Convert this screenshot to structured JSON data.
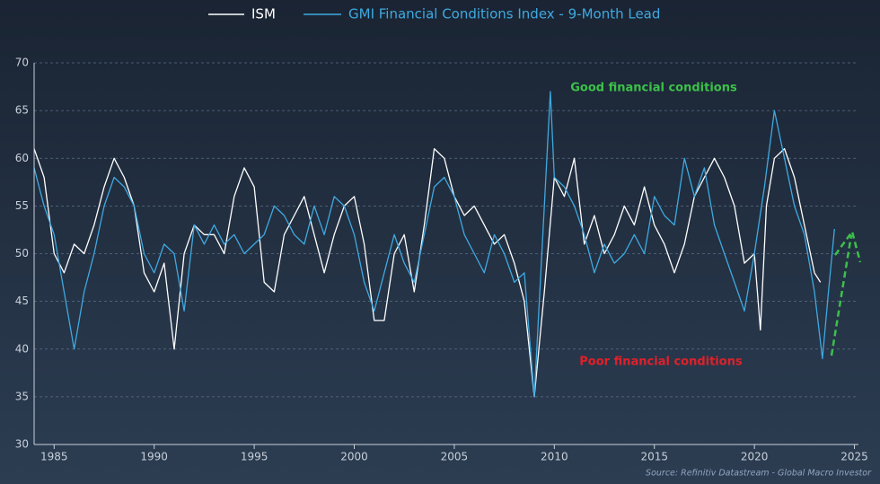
{
  "chart_data": {
    "type": "line",
    "xlim": [
      1984,
      2025.2
    ],
    "xticks": [
      1985,
      1990,
      1995,
      2000,
      2005,
      2010,
      2015,
      2020,
      2025
    ],
    "ylim": [
      30,
      70
    ],
    "yticks": [
      30,
      35,
      40,
      45,
      50,
      55,
      60,
      65,
      70
    ],
    "grid": true,
    "annotations": [
      "Good financial conditions",
      "Poor financial conditions"
    ],
    "source": "Source: Refinitiv Datastream - Global Macro Investor",
    "series": [
      {
        "name": "ISM",
        "color": "#ffffff",
        "x": [
          1984.0,
          1984.5,
          1985.0,
          1985.5,
          1986.0,
          1986.5,
          1987.0,
          1987.5,
          1988.0,
          1988.5,
          1989.0,
          1989.5,
          1990.0,
          1990.5,
          1991.0,
          1991.5,
          1992.0,
          1992.5,
          1993.0,
          1993.5,
          1994.0,
          1994.5,
          1995.0,
          1995.5,
          1996.0,
          1996.5,
          1997.0,
          1997.5,
          1998.0,
          1998.5,
          1999.0,
          1999.5,
          2000.0,
          2000.5,
          2001.0,
          2001.5,
          2002.0,
          2002.5,
          2003.0,
          2003.5,
          2004.0,
          2004.5,
          2005.0,
          2005.5,
          2006.0,
          2006.5,
          2007.0,
          2007.5,
          2008.0,
          2008.5,
          2009.0,
          2009.5,
          2010.0,
          2010.5,
          2011.0,
          2011.5,
          2012.0,
          2012.5,
          2013.0,
          2013.5,
          2014.0,
          2014.5,
          2015.0,
          2015.5,
          2016.0,
          2016.5,
          2017.0,
          2017.5,
          2018.0,
          2018.5,
          2019.0,
          2019.5,
          2020.0,
          2020.3,
          2020.6,
          2021.0,
          2021.5,
          2022.0,
          2022.5,
          2023.0,
          2023.3
        ],
        "values": [
          61,
          58,
          50,
          48,
          51,
          50,
          53,
          57,
          60,
          58,
          55,
          48,
          46,
          49,
          40,
          50,
          53,
          52,
          52,
          50,
          56,
          59,
          57,
          47,
          46,
          52,
          54,
          56,
          52,
          48,
          52,
          55,
          56,
          51,
          43,
          43,
          50,
          52,
          46,
          53,
          61,
          60,
          56,
          54,
          55,
          53,
          51,
          52,
          49,
          45,
          35,
          46,
          58,
          56,
          60,
          51,
          54,
          50,
          52,
          55,
          53,
          57,
          53,
          51,
          48,
          51,
          56,
          58,
          60,
          58,
          55,
          49,
          50,
          42,
          55,
          60,
          61,
          58,
          53,
          48,
          47
        ]
      },
      {
        "name": "GMI Financial Conditions Index - 9-Month Lead",
        "color": "#3fa9e0",
        "x": [
          1984.0,
          1984.5,
          1985.0,
          1985.5,
          1986.0,
          1986.5,
          1987.0,
          1987.5,
          1988.0,
          1988.5,
          1989.0,
          1989.5,
          1990.0,
          1990.5,
          1991.0,
          1991.5,
          1992.0,
          1992.5,
          1993.0,
          1993.5,
          1994.0,
          1994.5,
          1995.0,
          1995.5,
          1996.0,
          1996.5,
          1997.0,
          1997.5,
          1998.0,
          1998.5,
          1999.0,
          1999.5,
          2000.0,
          2000.5,
          2001.0,
          2001.5,
          2002.0,
          2002.5,
          2003.0,
          2003.5,
          2004.0,
          2004.5,
          2005.0,
          2005.5,
          2006.0,
          2006.5,
          2007.0,
          2007.5,
          2008.0,
          2008.5,
          2009.0,
          2009.5,
          2009.8,
          2010.0,
          2010.5,
          2011.0,
          2011.5,
          2012.0,
          2012.5,
          2013.0,
          2013.5,
          2014.0,
          2014.5,
          2015.0,
          2015.5,
          2016.0,
          2016.5,
          2017.0,
          2017.5,
          2018.0,
          2018.5,
          2019.0,
          2019.5,
          2020.0,
          2020.5,
          2021.0,
          2021.5,
          2022.0,
          2022.5,
          2023.0,
          2023.4,
          2023.7,
          2024.0
        ],
        "values": [
          59,
          55,
          52,
          46,
          40,
          46,
          50,
          55,
          58,
          57,
          55,
          50,
          48,
          51,
          50,
          44,
          53,
          51,
          53,
          51,
          52,
          50,
          51,
          52,
          55,
          54,
          52,
          51,
          55,
          52,
          56,
          55,
          52,
          47,
          44,
          48,
          52,
          49,
          47,
          52,
          57,
          58,
          56,
          52,
          50,
          48,
          52,
          50,
          47,
          48,
          35,
          55,
          67,
          58,
          57,
          55,
          52,
          48,
          51,
          49,
          50,
          52,
          50,
          56,
          54,
          53,
          60,
          56,
          59,
          53,
          50,
          47,
          44,
          50,
          57,
          65,
          60,
          55,
          52,
          46,
          39,
          46,
          52.6
        ]
      }
    ]
  }
}
